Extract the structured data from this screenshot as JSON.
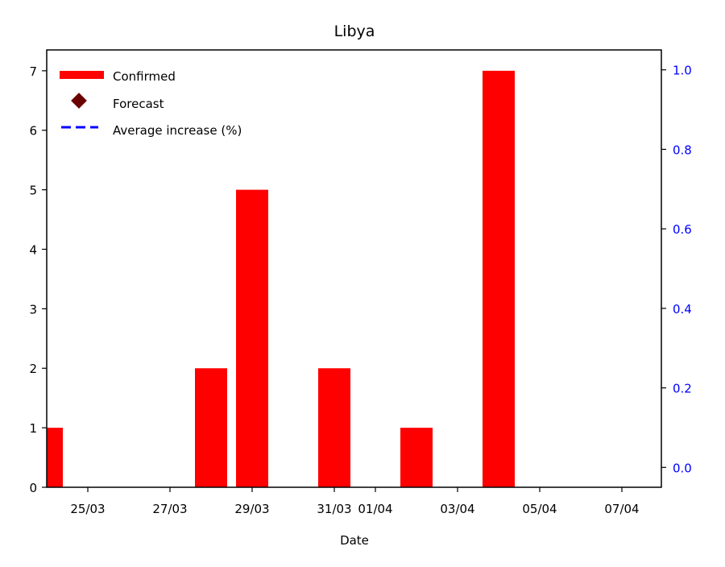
{
  "chart_data": {
    "type": "bar",
    "title": "Libya",
    "xlabel": "Date",
    "ylabel": "",
    "x_dates": [
      "24/03",
      "25/03",
      "26/03",
      "27/03",
      "28/03",
      "29/03",
      "30/03",
      "31/03",
      "01/04",
      "02/04",
      "03/04",
      "04/04",
      "05/04",
      "06/04",
      "07/04"
    ],
    "series": [
      {
        "name": "Confirmed",
        "type": "bar",
        "color": "#ff0000",
        "values": [
          1,
          0,
          0,
          0,
          2,
          5,
          0,
          2,
          0,
          1,
          0,
          7,
          0,
          0,
          0
        ]
      },
      {
        "name": "Forecast",
        "type": "marker",
        "color": "#6b0000",
        "values": []
      },
      {
        "name": "Average increase (%)",
        "type": "line",
        "axis": "right",
        "color": "#0000ff",
        "values": []
      }
    ],
    "x_ticks": [
      {
        "label": "25/03",
        "day": 1
      },
      {
        "label": "27/03",
        "day": 3
      },
      {
        "label": "29/03",
        "day": 5
      },
      {
        "label": "31/03",
        "day": 7
      },
      {
        "label": "01/04",
        "day": 8
      },
      {
        "label": "03/04",
        "day": 10
      },
      {
        "label": "05/04",
        "day": 12
      },
      {
        "label": "07/04",
        "day": 14
      }
    ],
    "ylim": [
      0,
      7.35
    ],
    "yticks": [
      0,
      1,
      2,
      3,
      4,
      5,
      6,
      7
    ],
    "y2lim": [
      -0.05,
      1.05
    ],
    "y2ticks": [
      "0.0",
      "0.2",
      "0.4",
      "0.6",
      "0.8",
      "1.0"
    ],
    "y2_tick_color": "#0000ff",
    "legend_position": "top-left",
    "grid": false
  }
}
